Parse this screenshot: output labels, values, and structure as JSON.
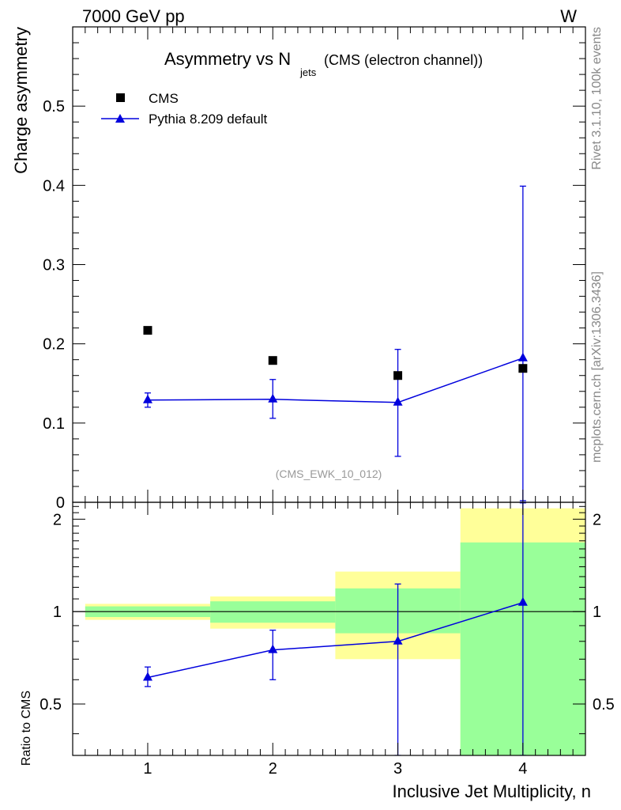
{
  "header": {
    "left": "7000 GeV pp",
    "right": "W"
  },
  "side_labels": {
    "rivet": "Rivet 3.1.10,  100k events",
    "mcplots": "mcplots.cern.ch [arXiv:1306.3436]"
  },
  "analysis_ref": "(CMS_EWK_10_012)",
  "colors": {
    "mc": "#0000dd",
    "band_inner": "#99ff99",
    "band_outer": "#ffff99",
    "data": "#000000"
  },
  "chart_data": [
    {
      "type": "scatter",
      "title": {
        "main": "Asymmetry vs N",
        "sub": "jets",
        "suffix": "(CMS (electron channel))"
      },
      "ylabel": "Charge asymmetry",
      "xlim": [
        0.4,
        4.5
      ],
      "ylim": [
        0,
        0.6
      ],
      "yticks": [
        "0",
        "0.1",
        "0.2",
        "0.3",
        "0.4",
        "0.5"
      ],
      "legend": {
        "position": "top-left",
        "entries": [
          "CMS",
          "Pythia 8.209 default"
        ]
      },
      "series": [
        {
          "name": "CMS",
          "marker": "square",
          "x": [
            1,
            2,
            3,
            4
          ],
          "y": [
            0.217,
            0.179,
            0.16,
            0.169
          ]
        },
        {
          "name": "Pythia 8.209 default",
          "marker": "triangle",
          "line": true,
          "x": [
            1,
            2,
            3,
            4
          ],
          "y": [
            0.129,
            0.13,
            0.126,
            0.182
          ],
          "yerr_low": [
            0.009,
            0.024,
            0.068,
            0.18
          ],
          "yerr_high": [
            0.009,
            0.025,
            0.067,
            0.217
          ]
        }
      ]
    },
    {
      "type": "scatter",
      "ylabel": "Ratio to CMS",
      "xlabel": "Inclusive Jet Multiplicity, n",
      "xlim": [
        0.4,
        4.5
      ],
      "ylim": [
        0.34,
        2.27
      ],
      "xticks": [
        "1",
        "2",
        "3",
        "4"
      ],
      "yticks": [
        "0.5",
        "1",
        "2"
      ],
      "bands": [
        {
          "x": [
            0.5,
            1.5
          ],
          "inner": [
            0.96,
            1.04
          ],
          "outer": [
            0.94,
            1.06
          ]
        },
        {
          "x": [
            1.5,
            2.5
          ],
          "inner": [
            0.92,
            1.08
          ],
          "outer": [
            0.88,
            1.12
          ]
        },
        {
          "x": [
            2.5,
            3.5
          ],
          "inner": [
            0.85,
            1.19
          ],
          "outer": [
            0.7,
            1.35
          ]
        },
        {
          "x": [
            3.5,
            4.5
          ],
          "inner": [
            0.34,
            1.68
          ],
          "outer": [
            0.34,
            2.17
          ]
        }
      ],
      "series": [
        {
          "name": "Pythia 8.209 default",
          "marker": "triangle",
          "line": true,
          "x": [
            1,
            2,
            3,
            4
          ],
          "y": [
            0.61,
            0.75,
            0.8,
            1.07
          ],
          "yerr_low": [
            0.04,
            0.15,
            0.46,
            0.73
          ],
          "yerr_high": [
            0.05,
            0.12,
            0.43,
            1.19
          ]
        }
      ]
    }
  ]
}
